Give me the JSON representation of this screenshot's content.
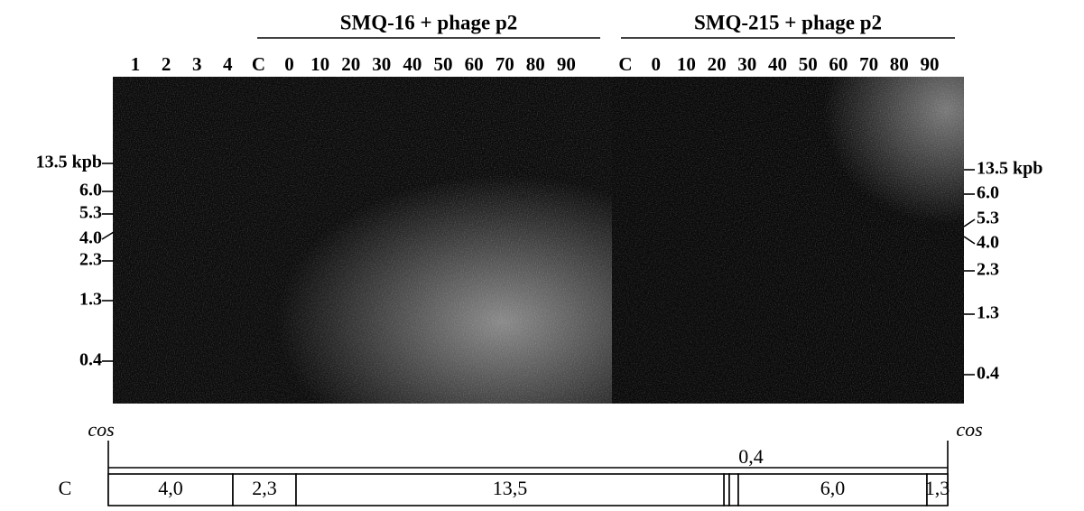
{
  "figure": {
    "groups": [
      {
        "title": "SMQ-16 + phage p2",
        "lanes": [
          "1",
          "2",
          "3",
          "4",
          "C",
          "0",
          "10",
          "20",
          "30",
          "40",
          "50",
          "60",
          "70",
          "80",
          "90"
        ]
      },
      {
        "title": "SMQ-215 + phage p2",
        "lanes": [
          "C",
          "0",
          "10",
          "20",
          "30",
          "40",
          "50",
          "60",
          "70",
          "80",
          "90"
        ]
      }
    ],
    "markers_left": [
      "13.5 kpb",
      "6.0",
      "5.3",
      "4.0",
      "2.3",
      "1.3",
      "0.4"
    ],
    "markers_right": [
      "13.5 kpb",
      "6.0",
      "5.3",
      "4.0",
      "2.3",
      "1.3",
      "0.4"
    ],
    "map": {
      "row_label": "C",
      "end_left": "cos",
      "end_right": "cos",
      "small_fragment": "0,4",
      "segments": [
        "4,0",
        "2,3",
        "13,5",
        "6,0",
        "1,3"
      ]
    }
  }
}
